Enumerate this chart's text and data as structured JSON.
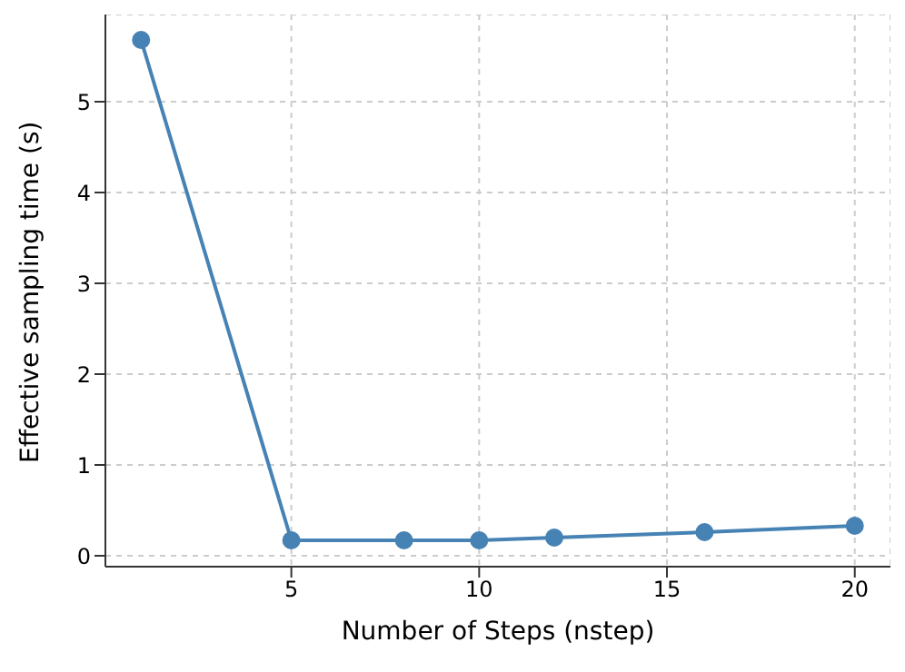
{
  "chart_data": {
    "type": "line",
    "xlabel": "Number of Steps (nstep)",
    "ylabel": "Effective sampling time (s)",
    "x": [
      1,
      5,
      8,
      10,
      12,
      16,
      20
    ],
    "series": [
      {
        "color": "#4682b4",
        "values": [
          5.68,
          0.17,
          0.17,
          0.17,
          0.2,
          0.26,
          0.33
        ]
      }
    ],
    "xlim": [
      0.05,
      20.95
    ],
    "xticks": [
      5,
      10,
      15,
      20
    ],
    "ylim": [
      -0.12,
      5.96
    ],
    "yticks": [
      0,
      1,
      2,
      3,
      4,
      5
    ],
    "grid": true,
    "marker": "circle",
    "line_style": "solid"
  }
}
